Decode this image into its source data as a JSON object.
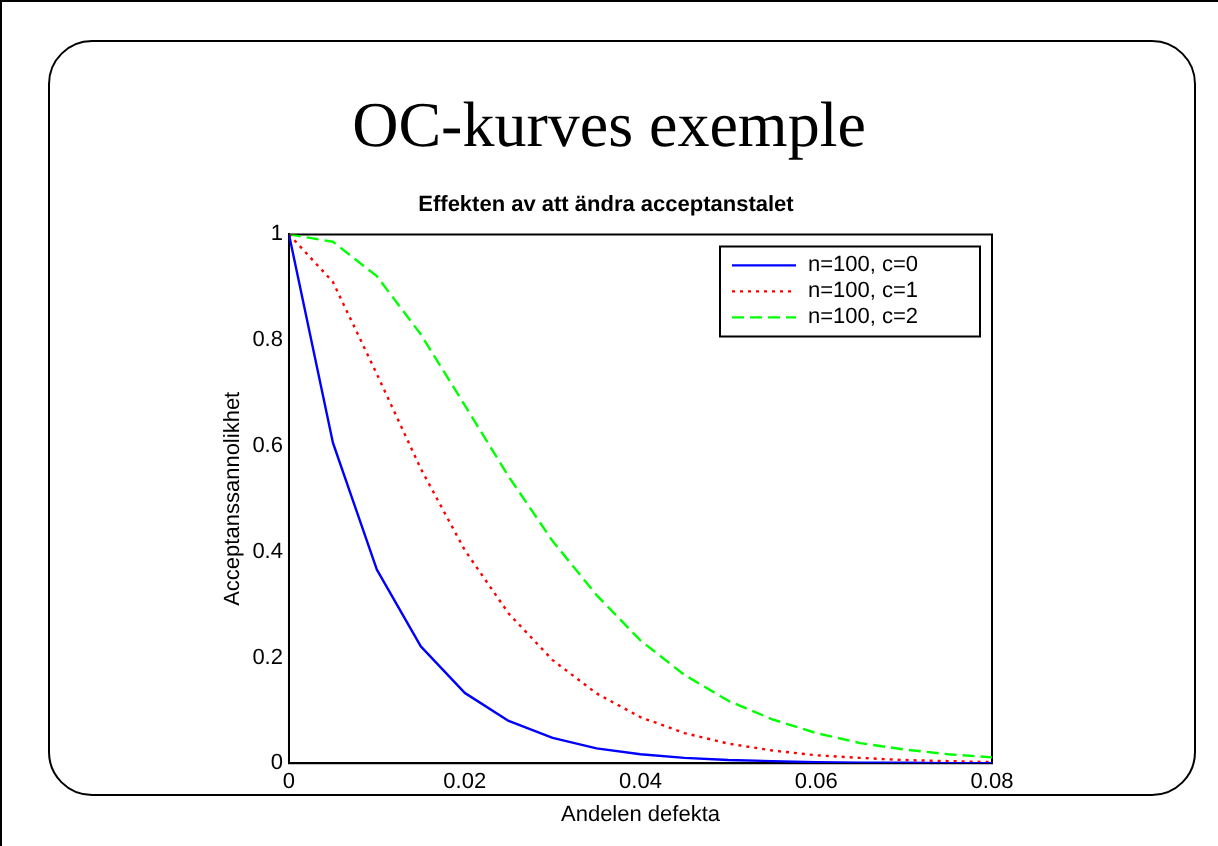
{
  "chart_data": {
    "type": "line",
    "title": "OC-kurves exemple",
    "subtitle": "Effekten av att ändra acceptanstalet",
    "xlabel": "Andelen defekta",
    "ylabel": "Acceptanssannolikhet",
    "x": [
      0,
      0.005,
      0.01,
      0.015,
      0.02,
      0.025,
      0.03,
      0.035,
      0.04,
      0.045,
      0.05,
      0.055,
      0.06,
      0.065,
      0.07,
      0.075,
      0.08
    ],
    "series": [
      {
        "name": "n=100, c=0",
        "color": "#0000ff",
        "line_style": "solid",
        "values": [
          1,
          0.606,
          0.366,
          0.221,
          0.133,
          0.08,
          0.048,
          0.028,
          0.017,
          0.01,
          0.006,
          0.004,
          0.002,
          0.001,
          0.001,
          0,
          0
        ]
      },
      {
        "name": "n=100, c=1",
        "color": "#ff0000",
        "line_style": "dotted",
        "values": [
          1,
          0.91,
          0.736,
          0.557,
          0.403,
          0.283,
          0.195,
          0.132,
          0.087,
          0.057,
          0.037,
          0.024,
          0.015,
          0.01,
          0.006,
          0.004,
          0.002
        ]
      },
      {
        "name": "n=100, c=2",
        "color": "#00ff00",
        "line_style": "dashed",
        "values": [
          1,
          0.986,
          0.921,
          0.811,
          0.677,
          0.542,
          0.42,
          0.318,
          0.232,
          0.167,
          0.118,
          0.083,
          0.057,
          0.038,
          0.026,
          0.017,
          0.011
        ]
      }
    ],
    "xlim": [
      0,
      0.08
    ],
    "xticks": [
      0,
      0.02,
      0.04,
      0.06,
      0.08
    ],
    "ylim": [
      0,
      1
    ],
    "yticks": [
      0,
      0.2,
      0.4,
      0.6,
      0.8,
      1
    ],
    "grid": false,
    "legend": "top right",
    "marker": "none"
  }
}
